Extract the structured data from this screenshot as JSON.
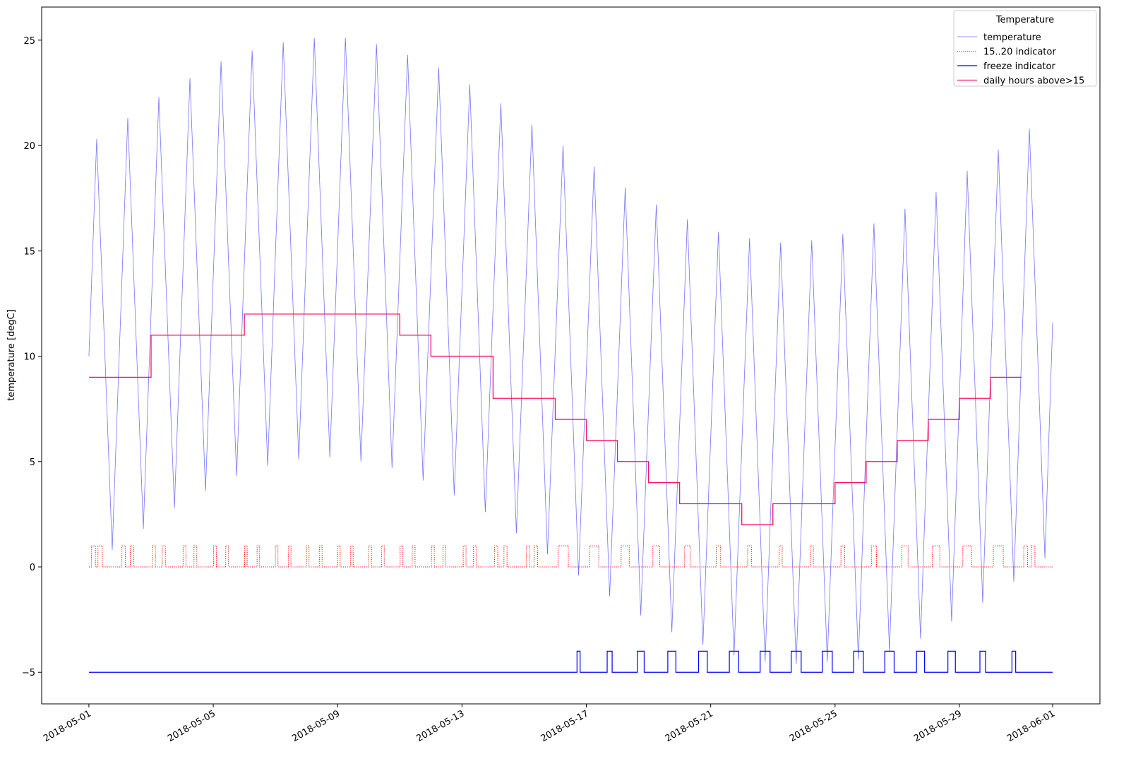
{
  "chart_data": {
    "type": "line",
    "y_label": "temperature [degC]",
    "xlim": [
      -1.52,
      32.52
    ],
    "ylim": [
      -6.5,
      26.57
    ],
    "xticks": [
      {
        "value": 0,
        "label": "2018-05-01"
      },
      {
        "value": 4,
        "label": "2018-05-05"
      },
      {
        "value": 8,
        "label": "2018-05-09"
      },
      {
        "value": 12,
        "label": "2018-05-13"
      },
      {
        "value": 16,
        "label": "2018-05-17"
      },
      {
        "value": 20,
        "label": "2018-05-21"
      },
      {
        "value": 24,
        "label": "2018-05-25"
      },
      {
        "value": 28,
        "label": "2018-05-29"
      },
      {
        "value": 31,
        "label": "2018-06-01"
      }
    ],
    "yticks": [
      {
        "value": -5,
        "label": "−5"
      },
      0,
      5,
      10,
      15,
      20,
      25
    ],
    "legend_title": "Temperature",
    "legend_position": "upper right",
    "series": [
      {
        "name": "temperature",
        "color": "#0000ff",
        "opacity": 0.55,
        "linewidth": 0.8,
        "linestyle": "solid",
        "drawstyle": "default",
        "x": [
          0,
          0.25,
          0.5,
          0.75,
          1,
          1.25,
          1.5,
          1.75,
          2,
          2.25,
          2.5,
          2.75,
          3,
          3.25,
          3.5,
          3.75,
          4,
          4.25,
          4.5,
          4.75,
          5,
          5.25,
          5.5,
          5.75,
          6,
          6.25,
          6.5,
          6.75,
          7,
          7.25,
          7.5,
          7.75,
          8,
          8.25,
          8.5,
          8.75,
          9,
          9.25,
          9.5,
          9.75,
          10,
          10.25,
          10.5,
          10.75,
          11,
          11.25,
          11.5,
          11.75,
          12,
          12.25,
          12.5,
          12.75,
          13,
          13.25,
          13.5,
          13.75,
          14,
          14.25,
          14.5,
          14.75,
          15,
          15.25,
          15.5,
          15.75,
          16,
          16.25,
          16.5,
          16.75,
          17,
          17.25,
          17.5,
          17.75,
          18,
          18.25,
          18.5,
          18.75,
          19,
          19.25,
          19.5,
          19.75,
          20,
          20.25,
          20.5,
          20.75,
          21,
          21.25,
          21.5,
          21.75,
          22,
          22.25,
          22.5,
          22.75,
          23,
          23.25,
          23.5,
          23.75,
          24,
          24.25,
          24.5,
          24.75,
          25,
          25.25,
          25.5,
          25.75,
          26,
          26.25,
          26.5,
          26.75,
          27,
          27.25,
          27.5,
          27.75,
          28,
          28.25,
          28.5,
          28.75,
          29,
          29.25,
          29.5,
          29.75,
          30,
          30.25,
          30.5,
          30.75,
          31
        ],
        "values": [
          10,
          20.3,
          10.6,
          0.8,
          11.1,
          21.3,
          11.6,
          1.8,
          12.1,
          22.3,
          12.6,
          2.8,
          13.0,
          23.2,
          13.4,
          3.6,
          13.8,
          24.0,
          14.2,
          4.3,
          14.4,
          24.5,
          14.7,
          4.8,
          14.9,
          24.9,
          15.0,
          5.1,
          15.1,
          25.1,
          15.2,
          5.2,
          15.2,
          25.1,
          15.1,
          5.0,
          14.9,
          24.8,
          14.8,
          4.7,
          14.5,
          24.3,
          14.2,
          4.1,
          13.9,
          23.7,
          13.6,
          3.4,
          13.2,
          22.9,
          12.8,
          2.6,
          12.3,
          22.0,
          11.8,
          1.6,
          11.3,
          21.0,
          10.8,
          0.6,
          10.3,
          20.0,
          9.8,
          -0.4,
          9.3,
          19.0,
          8.8,
          -1.4,
          8.3,
          18.0,
          7.9,
          -2.3,
          7.5,
          17.2,
          7.1,
          -3.1,
          6.7,
          16.5,
          6.4,
          -3.7,
          6.1,
          15.9,
          5.9,
          -4.2,
          5.7,
          15.6,
          5.6,
          -4.5,
          5.5,
          15.4,
          5.4,
          -4.6,
          5.5,
          15.5,
          5.5,
          -4.5,
          5.7,
          15.8,
          5.7,
          -4.4,
          6.0,
          16.3,
          6.2,
          -4.0,
          6.5,
          17.0,
          6.8,
          -3.4,
          7.2,
          17.8,
          7.6,
          -2.6,
          8.1,
          18.8,
          8.6,
          -1.7,
          9.1,
          19.8,
          9.6,
          -0.7,
          10.1,
          20.8,
          10.8,
          0.4,
          11.6
        ]
      },
      {
        "name": "15..20 indicator",
        "color": "#ff0000",
        "opacity": 1,
        "linewidth": 1,
        "linestyle": "dotted",
        "drawstyle": "steps-post",
        "x": [
          0,
          0.08,
          0.21,
          0.29,
          0.43,
          1.06,
          1.17,
          1.33,
          1.44,
          2.04,
          2.14,
          2.36,
          2.46,
          3.03,
          3.12,
          3.38,
          3.47,
          4.01,
          4.1,
          4.4,
          4.49,
          5.01,
          5.09,
          5.41,
          5.49,
          6.0,
          6.08,
          6.42,
          6.5,
          7.0,
          7.08,
          7.42,
          7.5,
          8.0,
          8.08,
          8.42,
          8.5,
          9.0,
          9.09,
          9.41,
          9.5,
          10.01,
          10.1,
          10.4,
          10.49,
          11.02,
          11.11,
          11.39,
          11.48,
          12.04,
          12.13,
          12.37,
          12.46,
          13.05,
          13.15,
          13.35,
          13.45,
          14.07,
          14.18,
          14.32,
          14.43,
          15.09,
          15.42,
          16.1,
          16.4,
          17.12,
          17.38,
          18.14,
          18.36,
          19.16,
          19.34,
          20.18,
          20.32,
          21.19,
          21.31,
          22.2,
          22.3,
          23.2,
          23.3,
          24.19,
          24.31,
          25.17,
          25.33,
          26.15,
          26.35,
          27.13,
          27.37,
          28.11,
          28.39,
          29.09,
          29.41,
          30.07,
          30.19,
          30.31,
          30.43,
          31
        ],
        "values": [
          0,
          1,
          0,
          1,
          0,
          1,
          0,
          1,
          0,
          1,
          0,
          1,
          0,
          1,
          0,
          1,
          0,
          1,
          0,
          1,
          0,
          1,
          0,
          1,
          0,
          1,
          0,
          1,
          0,
          1,
          0,
          1,
          0,
          1,
          0,
          1,
          0,
          1,
          0,
          1,
          0,
          1,
          0,
          1,
          0,
          1,
          0,
          1,
          0,
          1,
          0,
          1,
          0,
          1,
          0,
          1,
          0,
          1,
          0,
          1,
          0,
          1,
          0,
          1,
          0,
          1,
          0,
          1,
          0,
          1,
          0,
          1,
          0,
          1,
          0,
          1,
          0,
          1,
          0,
          1,
          0,
          1,
          0,
          1,
          0,
          1,
          0,
          1,
          0,
          1,
          0,
          1,
          0,
          1,
          0,
          0
        ]
      },
      {
        "name": "freeze indicator",
        "color": "#0000ff",
        "opacity": 1,
        "linewidth": 1.2,
        "linestyle": "solid",
        "drawstyle": "steps-post",
        "x": [
          0,
          15.7,
          15.8,
          16.67,
          16.83,
          17.64,
          17.86,
          18.62,
          18.88,
          19.61,
          19.89,
          20.6,
          20.9,
          21.59,
          21.91,
          22.59,
          22.91,
          23.59,
          23.91,
          24.6,
          24.91,
          25.6,
          25.9,
          26.62,
          26.88,
          27.63,
          27.87,
          28.66,
          28.84,
          29.69,
          29.81,
          31
        ],
        "values": [
          -5,
          -4,
          -5,
          -4,
          -5,
          -4,
          -5,
          -4,
          -5,
          -4,
          -5,
          -4,
          -5,
          -4,
          -5,
          -4,
          -5,
          -4,
          -5,
          -4,
          -5,
          -4,
          -5,
          -4,
          -5,
          -4,
          -5,
          -4,
          -5,
          -4,
          -5,
          -5
        ]
      },
      {
        "name": "daily hours above>15",
        "color": "#ff1060",
        "opacity": 1,
        "linewidth": 1.3,
        "linestyle": "solid",
        "drawstyle": "steps-post",
        "x": [
          0,
          1,
          2,
          3,
          4,
          5,
          6,
          7,
          8,
          9,
          10,
          11,
          12,
          13,
          14,
          15,
          16,
          17,
          18,
          19,
          20,
          21,
          22,
          23,
          24,
          25,
          26,
          27,
          28,
          29,
          30
        ],
        "values": [
          9,
          9,
          11,
          11,
          11,
          12,
          12,
          12,
          12,
          12,
          11,
          10,
          10,
          8,
          8,
          7,
          6,
          5,
          4,
          3,
          3,
          2,
          3,
          3,
          4,
          5,
          6,
          7,
          8,
          9,
          9
        ]
      }
    ]
  }
}
